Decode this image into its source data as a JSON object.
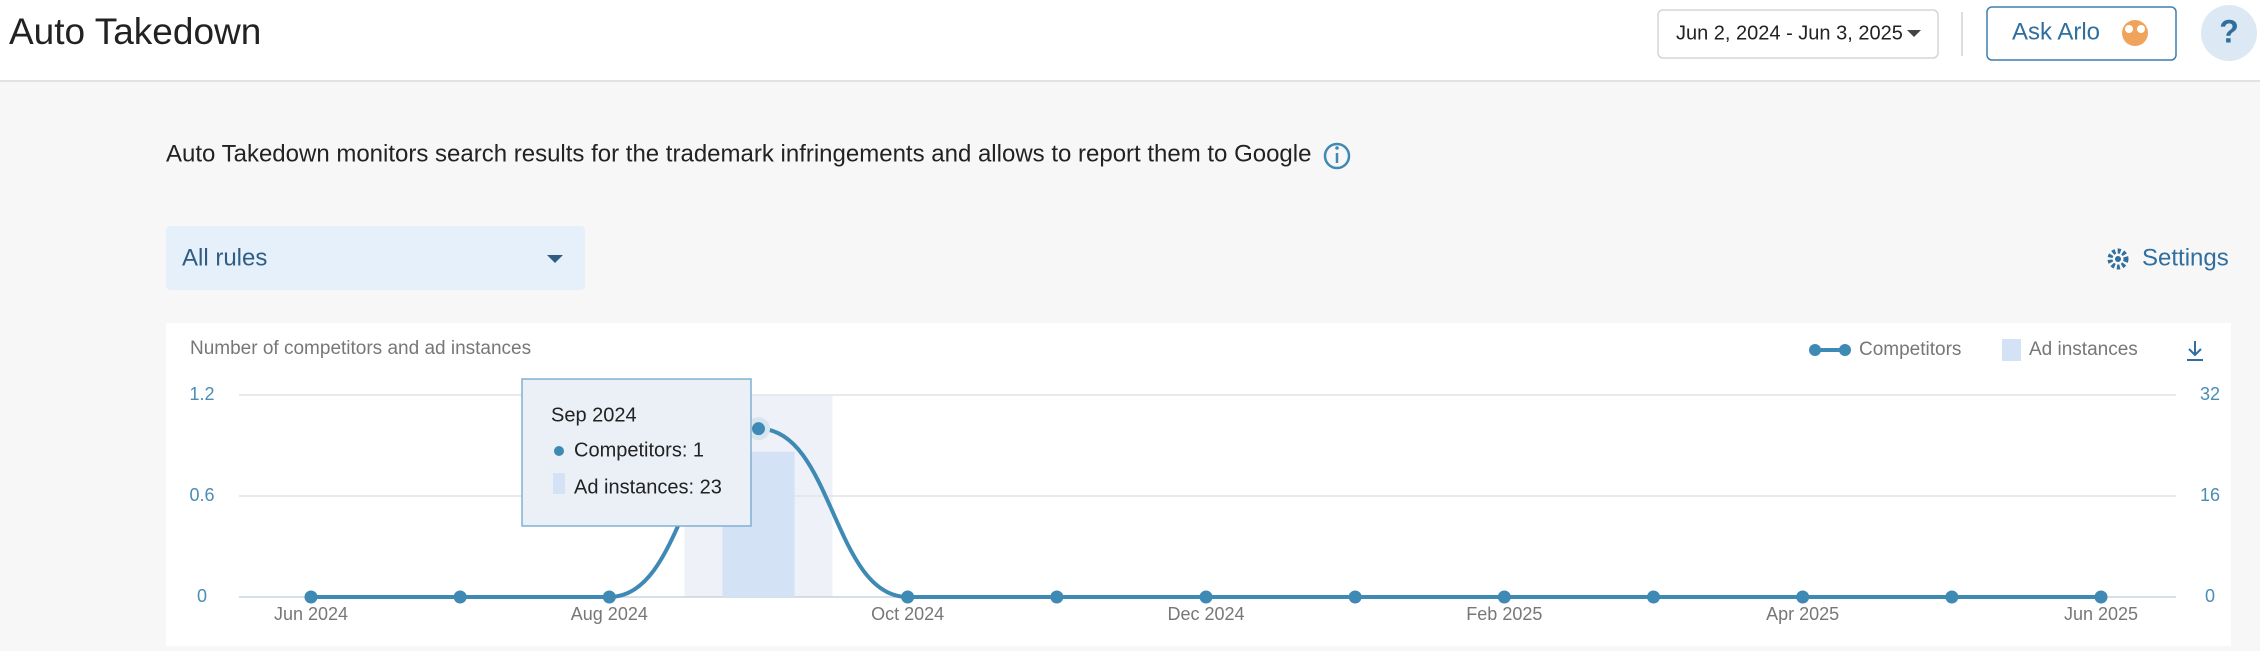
{
  "header": {
    "title": "Auto Takedown",
    "date_range": "Jun 2, 2024 - Jun 3, 2025",
    "ask_button": "Ask Arlo",
    "help": "?"
  },
  "description": "Auto Takedown monitors search results for the trademark infringements and allows to report them to Google",
  "filter": "All rules",
  "settings": "Settings",
  "chart_data": {
    "type": "line",
    "title": "Number of competitors and ad instances",
    "categories": [
      "Jun 2024",
      null,
      "Aug 2024",
      null,
      "Oct 2024",
      null,
      "Dec 2024",
      null,
      "Feb 2025",
      null,
      "Apr 2025",
      null,
      "Jun 2025"
    ],
    "series": [
      {
        "name": "Competitors",
        "color": "#3f89b5",
        "values": [
          0,
          0,
          0,
          1,
          0,
          0,
          0,
          0,
          0,
          0,
          0,
          0,
          0
        ]
      },
      {
        "name": "Ad instances",
        "color": "#d3e2f4",
        "type": "bar",
        "axis": "y2",
        "values": [
          0,
          0,
          0,
          23,
          0,
          0,
          0,
          0,
          0,
          0,
          0,
          0,
          0
        ]
      }
    ],
    "ylim": [
      0,
      1.2
    ],
    "yticks": [
      0,
      0.6,
      1.2
    ],
    "y2lim": [
      0,
      32
    ],
    "y2ticks": [
      0,
      16,
      32
    ],
    "grid": true,
    "tooltip": {
      "title": "Sep 2024",
      "lines": [
        "Competitors: 1",
        "Ad instances: 23"
      ]
    }
  }
}
